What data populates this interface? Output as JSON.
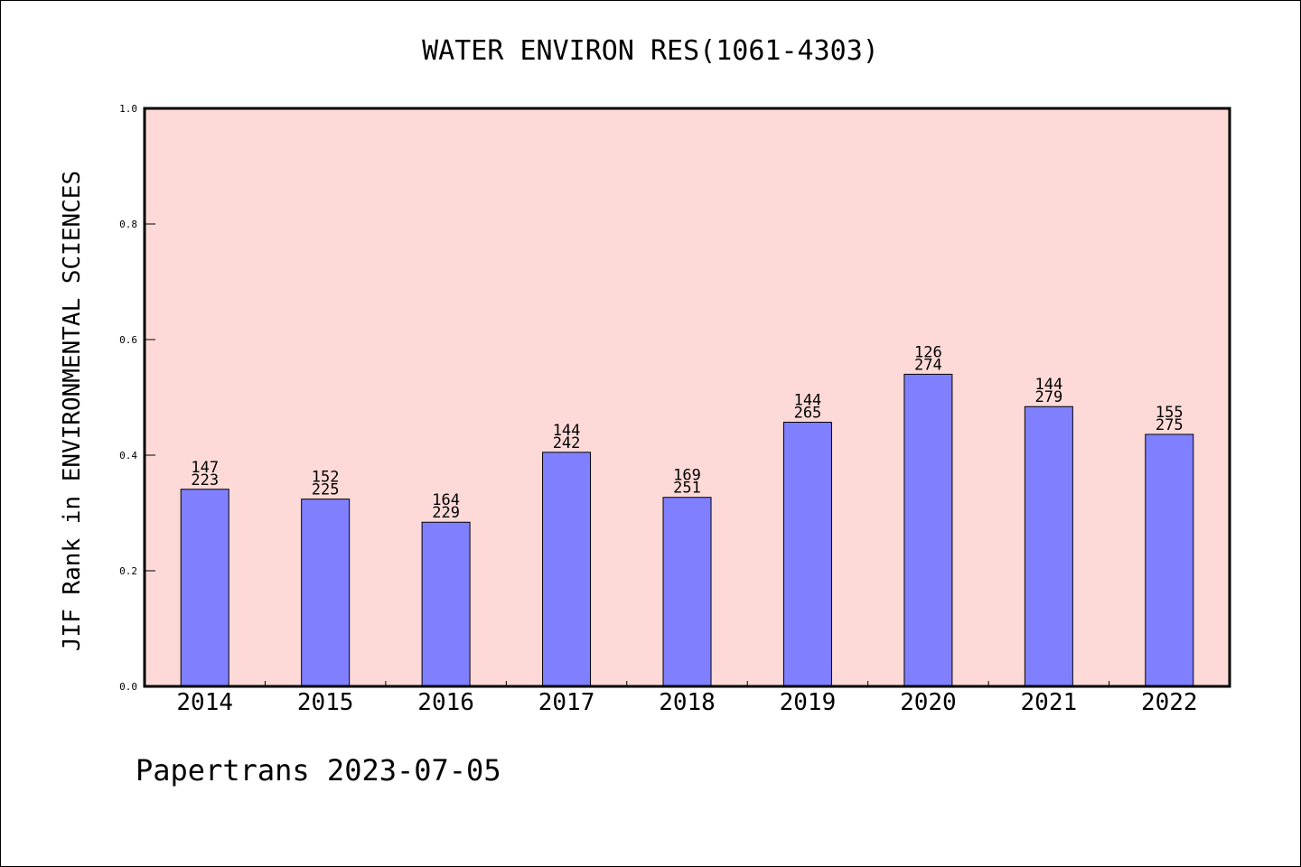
{
  "chart_data": {
    "type": "bar",
    "title": "WATER ENVIRON RES(1061-4303)",
    "xlabel": "",
    "ylabel": "JIF Rank in ENVIRONMENTAL SCIENCES",
    "ylim": [
      0,
      1.0
    ],
    "yticks": [
      "0.0",
      "0.2",
      "0.4",
      "0.6",
      "0.8",
      "1.0"
    ],
    "categories": [
      "2014",
      "2015",
      "2016",
      "2017",
      "2018",
      "2019",
      "2020",
      "2021",
      "2022"
    ],
    "values": [
      0.341,
      0.324,
      0.284,
      0.405,
      0.327,
      0.457,
      0.54,
      0.484,
      0.436
    ],
    "labels_top": [
      "147",
      "152",
      "164",
      "144",
      "169",
      "144",
      "126",
      "144",
      "155"
    ],
    "labels_bottom": [
      "223",
      "225",
      "229",
      "242",
      "251",
      "265",
      "274",
      "279",
      "275"
    ],
    "grid": false,
    "legend": "none",
    "colors": {
      "plot_background": "#fddad7",
      "bar_fill": "#8080ff",
      "bar_stroke": "#000000"
    }
  },
  "footer": "Papertrans 2023-07-05"
}
